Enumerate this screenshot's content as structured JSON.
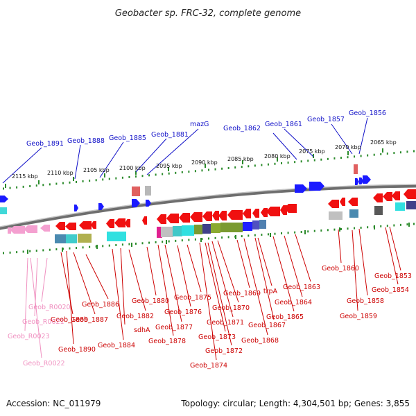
{
  "title": "Geobacter sp. FRC-32, complete genome",
  "footer": {
    "accession": "Accession: NC_011979",
    "summary": "Topology: circular; Length: 4,304,501 bp; Genes: 3,855"
  },
  "colors": {
    "forward_label": "#1010c8",
    "reverse_label": "#cc0000",
    "rna_label": "#f090c0",
    "tick": "#2a8a2a",
    "backbone": "#808080"
  },
  "scale_labels": [
    "2115 kbp",
    "2110 kbp",
    "2105 kbp",
    "2100 kbp",
    "2095 kbp",
    "2090 kbp",
    "2085 kbp",
    "2080 kbp",
    "2075 kbp",
    "2070 kbp",
    "2065 kbp"
  ],
  "forward_labels": [
    "Geob_1891",
    "Geob_1888",
    "Geob_1885",
    "Geob_1881",
    "mazG",
    "Geob_1862",
    "Geob_1861",
    "Geob_1857",
    "Geob_1856"
  ],
  "reverse_labels": [
    "Geob_1889",
    "Geob_1887",
    "Geob_1886",
    "Geob_1884",
    "sdhA",
    "Geob_1882",
    "Geob_1880",
    "Geob_1878",
    "Geob_1877",
    "Geob_1876",
    "Geob_1875",
    "Geob_1874",
    "Geob_1873",
    "Geob_1872",
    "Geob_1871",
    "Geob_1870",
    "Geob_1869",
    "Geob_1868",
    "Geob_1867",
    "trpA",
    "Geob_1865",
    "Geob_1864",
    "Geob_1863",
    "Geob_1860",
    "Geob_1859",
    "Geob_1858",
    "Geob_1854",
    "Geob_1853",
    "Geob_1890"
  ],
  "rna_labels": [
    "Geob_R0020",
    "Geob_R0021",
    "Geob_R0023",
    "Geob_R0022"
  ]
}
